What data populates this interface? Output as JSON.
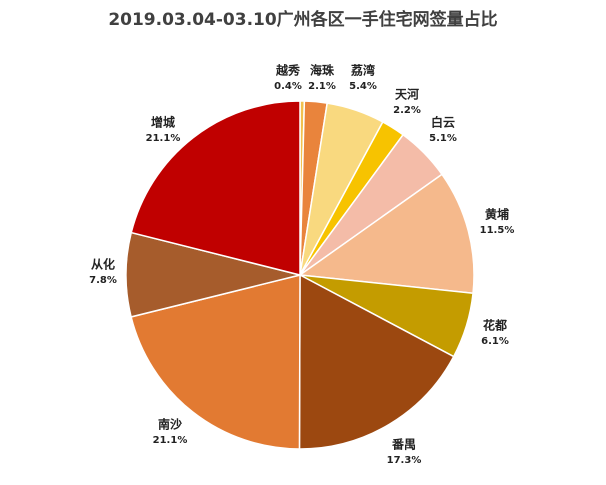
{
  "chart_data": {
    "type": "pie",
    "title": "2019.03.04-03.10广州各区一手住宅网签量占比",
    "categories": [
      "越秀",
      "海珠",
      "荔湾",
      "天河",
      "白云",
      "黄埔",
      "花都",
      "番禺",
      "南沙",
      "从化",
      "增城"
    ],
    "values": [
      0.4,
      2.1,
      5.4,
      2.2,
      5.1,
      11.5,
      6.1,
      17.3,
      21.1,
      7.8,
      21.1
    ],
    "value_labels": [
      "0.4%",
      "2.1%",
      "5.4%",
      "2.2%",
      "5.1%",
      "11.5%",
      "6.1%",
      "17.3%",
      "21.1%",
      "7.8%",
      "21.1%"
    ],
    "colors": [
      "#f2c14e",
      "#e9843c",
      "#f9d97f",
      "#f7c300",
      "#f4bca8",
      "#f5b98c",
      "#c49c00",
      "#9c4810",
      "#e27a32",
      "#a65c2c",
      "#c00000"
    ]
  }
}
